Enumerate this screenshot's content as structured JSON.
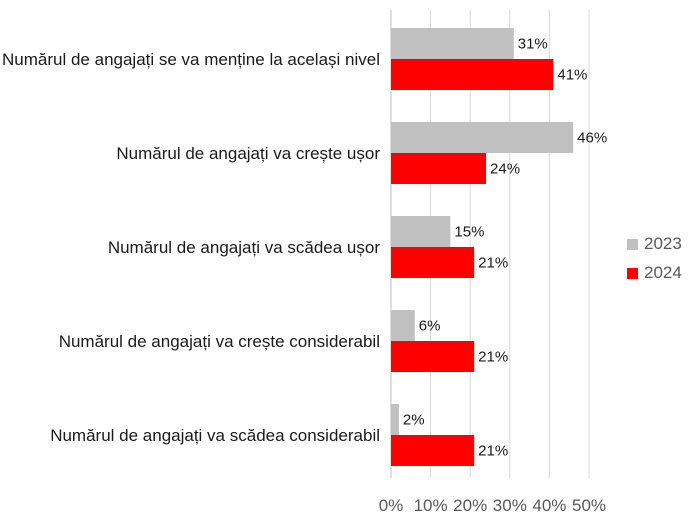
{
  "chart_data": {
    "type": "bar",
    "orientation": "horizontal",
    "categories": [
      "Numărul de angajați se va menține la același nivel",
      "Numărul de angajați va crește ușor",
      "Numărul de angajați va scădea ușor",
      "Numărul de angajați va crește considerabil",
      "Numărul de angajați va scădea considerabil"
    ],
    "series": [
      {
        "name": "2023",
        "color": "#c0c0c0",
        "values": [
          31,
          46,
          15,
          6,
          2
        ]
      },
      {
        "name": "2024",
        "color": "#ff0000",
        "values": [
          41,
          24,
          21,
          21,
          21
        ]
      }
    ],
    "value_labels": {
      "2023": [
        "31%",
        "46%",
        "15%",
        "6%",
        "2%"
      ],
      "2024": [
        "41%",
        "24%",
        "21%",
        "21%",
        "21%"
      ]
    },
    "xlim": [
      0,
      50
    ],
    "xticks": [
      "0%",
      "10%",
      "20%",
      "30%",
      "40%",
      "50%"
    ],
    "title": "",
    "xlabel": "",
    "ylabel": "",
    "grid": "vertical",
    "legend_position": "right"
  }
}
